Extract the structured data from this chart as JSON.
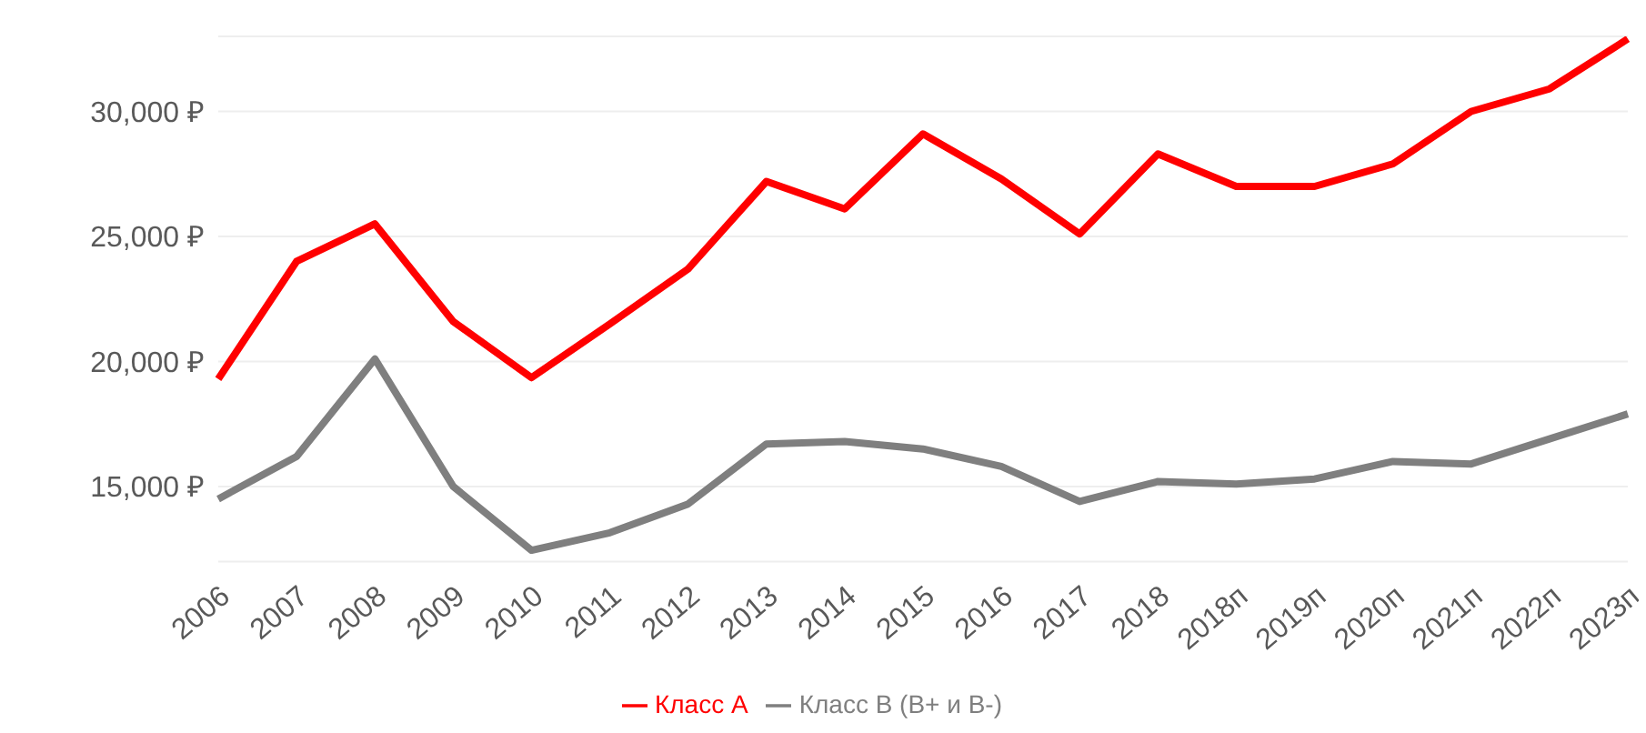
{
  "chart_data": {
    "type": "line",
    "categories": [
      "2006",
      "2007",
      "2008",
      "2009",
      "2010",
      "2011",
      "2012",
      "2013",
      "2014",
      "2015",
      "2016",
      "2017",
      "2018",
      "2018п",
      "2019п",
      "2020п",
      "2021п",
      "2022п",
      "2023п"
    ],
    "series": [
      {
        "name": "Класс А",
        "color": "#ff0000",
        "values": [
          19300,
          24000,
          25500,
          21600,
          19350,
          21500,
          23700,
          27200,
          26100,
          29100,
          27300,
          25100,
          28300,
          27000,
          27000,
          27900,
          30000,
          30900,
          32900
        ]
      },
      {
        "name": "Класс В (В+ и В-)",
        "color": "#7f7f7f",
        "values": [
          14500,
          16200,
          20100,
          15000,
          12450,
          13150,
          14300,
          16700,
          16800,
          16500,
          15800,
          14400,
          15200,
          15100,
          15300,
          16000,
          15900,
          16900,
          17900
        ]
      }
    ],
    "ylim": [
      12000,
      33000
    ],
    "yticks": [
      {
        "value": 15000,
        "label": "15,000 ₽"
      },
      {
        "value": 20000,
        "label": "20,000 ₽"
      },
      {
        "value": 25000,
        "label": "25,000 ₽"
      },
      {
        "value": 30000,
        "label": "30,000 ₽"
      }
    ],
    "grid": "y",
    "legend": "bottom",
    "marker": "none",
    "line_style": "solid"
  }
}
